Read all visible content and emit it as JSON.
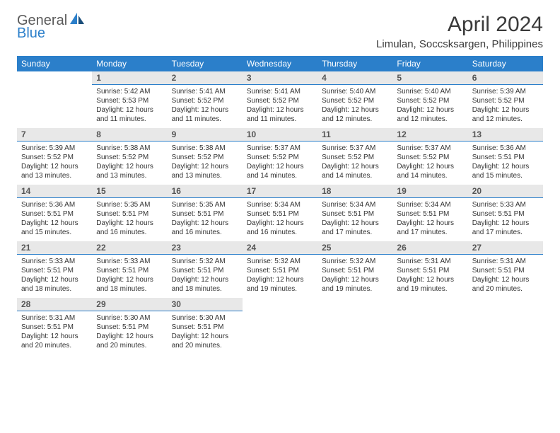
{
  "logo": {
    "line1": "General",
    "line2": "Blue"
  },
  "title": "April 2024",
  "location": "Limulan, Soccsksargen, Philippines",
  "colors": {
    "header_bg": "#2b7fca",
    "header_fg": "#ffffff",
    "daynum_bg": "#e8e8e8",
    "daynum_fg": "#555555",
    "divider": "#2b7fca",
    "body_text": "#333333",
    "page_bg": "#ffffff",
    "logo_gray": "#5a5a5a",
    "logo_blue": "#2b7fca"
  },
  "typography": {
    "title_fontsize": 30,
    "location_fontsize": 15,
    "weekday_fontsize": 12,
    "daynum_fontsize": 12,
    "body_fontsize": 10,
    "font_family": "Arial"
  },
  "layout": {
    "weeks": 5,
    "columns": 7
  },
  "weekdays": [
    "Sunday",
    "Monday",
    "Tuesday",
    "Wednesday",
    "Thursday",
    "Friday",
    "Saturday"
  ],
  "weeks": [
    [
      null,
      {
        "n": "1",
        "sr": "5:42 AM",
        "ss": "5:53 PM",
        "dl": "12 hours and 11 minutes."
      },
      {
        "n": "2",
        "sr": "5:41 AM",
        "ss": "5:52 PM",
        "dl": "12 hours and 11 minutes."
      },
      {
        "n": "3",
        "sr": "5:41 AM",
        "ss": "5:52 PM",
        "dl": "12 hours and 11 minutes."
      },
      {
        "n": "4",
        "sr": "5:40 AM",
        "ss": "5:52 PM",
        "dl": "12 hours and 12 minutes."
      },
      {
        "n": "5",
        "sr": "5:40 AM",
        "ss": "5:52 PM",
        "dl": "12 hours and 12 minutes."
      },
      {
        "n": "6",
        "sr": "5:39 AM",
        "ss": "5:52 PM",
        "dl": "12 hours and 12 minutes."
      }
    ],
    [
      {
        "n": "7",
        "sr": "5:39 AM",
        "ss": "5:52 PM",
        "dl": "12 hours and 13 minutes."
      },
      {
        "n": "8",
        "sr": "5:38 AM",
        "ss": "5:52 PM",
        "dl": "12 hours and 13 minutes."
      },
      {
        "n": "9",
        "sr": "5:38 AM",
        "ss": "5:52 PM",
        "dl": "12 hours and 13 minutes."
      },
      {
        "n": "10",
        "sr": "5:37 AM",
        "ss": "5:52 PM",
        "dl": "12 hours and 14 minutes."
      },
      {
        "n": "11",
        "sr": "5:37 AM",
        "ss": "5:52 PM",
        "dl": "12 hours and 14 minutes."
      },
      {
        "n": "12",
        "sr": "5:37 AM",
        "ss": "5:52 PM",
        "dl": "12 hours and 14 minutes."
      },
      {
        "n": "13",
        "sr": "5:36 AM",
        "ss": "5:51 PM",
        "dl": "12 hours and 15 minutes."
      }
    ],
    [
      {
        "n": "14",
        "sr": "5:36 AM",
        "ss": "5:51 PM",
        "dl": "12 hours and 15 minutes."
      },
      {
        "n": "15",
        "sr": "5:35 AM",
        "ss": "5:51 PM",
        "dl": "12 hours and 16 minutes."
      },
      {
        "n": "16",
        "sr": "5:35 AM",
        "ss": "5:51 PM",
        "dl": "12 hours and 16 minutes."
      },
      {
        "n": "17",
        "sr": "5:34 AM",
        "ss": "5:51 PM",
        "dl": "12 hours and 16 minutes."
      },
      {
        "n": "18",
        "sr": "5:34 AM",
        "ss": "5:51 PM",
        "dl": "12 hours and 17 minutes."
      },
      {
        "n": "19",
        "sr": "5:34 AM",
        "ss": "5:51 PM",
        "dl": "12 hours and 17 minutes."
      },
      {
        "n": "20",
        "sr": "5:33 AM",
        "ss": "5:51 PM",
        "dl": "12 hours and 17 minutes."
      }
    ],
    [
      {
        "n": "21",
        "sr": "5:33 AM",
        "ss": "5:51 PM",
        "dl": "12 hours and 18 minutes."
      },
      {
        "n": "22",
        "sr": "5:33 AM",
        "ss": "5:51 PM",
        "dl": "12 hours and 18 minutes."
      },
      {
        "n": "23",
        "sr": "5:32 AM",
        "ss": "5:51 PM",
        "dl": "12 hours and 18 minutes."
      },
      {
        "n": "24",
        "sr": "5:32 AM",
        "ss": "5:51 PM",
        "dl": "12 hours and 19 minutes."
      },
      {
        "n": "25",
        "sr": "5:32 AM",
        "ss": "5:51 PM",
        "dl": "12 hours and 19 minutes."
      },
      {
        "n": "26",
        "sr": "5:31 AM",
        "ss": "5:51 PM",
        "dl": "12 hours and 19 minutes."
      },
      {
        "n": "27",
        "sr": "5:31 AM",
        "ss": "5:51 PM",
        "dl": "12 hours and 20 minutes."
      }
    ],
    [
      {
        "n": "28",
        "sr": "5:31 AM",
        "ss": "5:51 PM",
        "dl": "12 hours and 20 minutes."
      },
      {
        "n": "29",
        "sr": "5:30 AM",
        "ss": "5:51 PM",
        "dl": "12 hours and 20 minutes."
      },
      {
        "n": "30",
        "sr": "5:30 AM",
        "ss": "5:51 PM",
        "dl": "12 hours and 20 minutes."
      },
      null,
      null,
      null,
      null
    ]
  ],
  "labels": {
    "sunrise": "Sunrise:",
    "sunset": "Sunset:",
    "daylight": "Daylight:"
  }
}
